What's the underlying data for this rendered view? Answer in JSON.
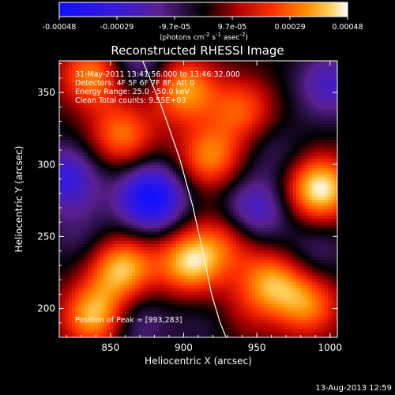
{
  "chart_data": {
    "type": "heatmap",
    "title": "Reconstructed RHESSI Image",
    "xlabel": "Heliocentric X (arcsec)",
    "ylabel": "Heliocentric Y (arcsec)",
    "xlim": [
      815,
      1005
    ],
    "ylim": [
      180,
      372
    ],
    "x_ticks": [
      850,
      900,
      950,
      1000
    ],
    "y_ticks": [
      200,
      250,
      300,
      350
    ],
    "colorbar": {
      "ticks": [
        "-0.00048",
        "-0.00029",
        "-9.7e-05",
        "9.7e-05",
        "0.00029",
        "0.00048"
      ],
      "units_prefix": "(photons cm",
      "units_exp1": "-2",
      "units_mid": " s",
      "units_exp2": "-1",
      "units_mid2": " asec",
      "units_exp3": "-2",
      "units_suffix": ")",
      "range": [
        -0.00048,
        0.00048
      ]
    },
    "annotations": [
      "31-May-2011 13:41:56.000 to 13:46:32.000",
      "Detectors: 4F 5F 6F 7F 8F, Att 0",
      "Energy Range: 25.0 - 50.0 keV",
      "Clean     Total counts: 9.55E+03"
    ],
    "peak_label": "Position of Peak = [993,283]",
    "peak": [
      993,
      283
    ],
    "blobs": [
      {
        "x": 993,
        "y": 283,
        "v": 0.00048
      },
      {
        "x": 905,
        "y": 232,
        "v": 0.00042
      },
      {
        "x": 858,
        "y": 228,
        "v": 0.0004
      },
      {
        "x": 840,
        "y": 195,
        "v": 0.00042
      },
      {
        "x": 838,
        "y": 362,
        "v": 0.00034
      },
      {
        "x": 858,
        "y": 320,
        "v": 0.0003
      },
      {
        "x": 918,
        "y": 305,
        "v": 0.00032
      },
      {
        "x": 900,
        "y": 352,
        "v": 0.00036
      },
      {
        "x": 940,
        "y": 338,
        "v": 0.00026
      },
      {
        "x": 960,
        "y": 218,
        "v": 0.00034
      },
      {
        "x": 985,
        "y": 202,
        "v": 0.0003
      },
      {
        "x": 930,
        "y": 248,
        "v": 0.0002
      },
      {
        "x": 938,
        "y": 195,
        "v": 0.0001
      },
      {
        "x": 878,
        "y": 277,
        "v": -0.00048
      },
      {
        "x": 820,
        "y": 290,
        "v": -0.0003
      },
      {
        "x": 948,
        "y": 268,
        "v": -0.00028
      },
      {
        "x": 868,
        "y": 372,
        "v": -0.0002
      },
      {
        "x": 865,
        "y": 190,
        "v": -0.00018
      },
      {
        "x": 1000,
        "y": 355,
        "v": -0.00024
      },
      {
        "x": 962,
        "y": 308,
        "v": -0.0001
      },
      {
        "x": 990,
        "y": 240,
        "v": -0.00012
      },
      {
        "x": 915,
        "y": 190,
        "v": -8e-05
      },
      {
        "x": 830,
        "y": 250,
        "v": -0.0001
      }
    ],
    "limb_curve": {
      "x": [
        872,
        885,
        897,
        906,
        913,
        919,
        925,
        929
      ],
      "y": [
        372,
        340,
        305,
        272,
        240,
        210,
        190,
        180
      ]
    }
  },
  "footer_timestamp": "13-Aug-2013 12:59"
}
